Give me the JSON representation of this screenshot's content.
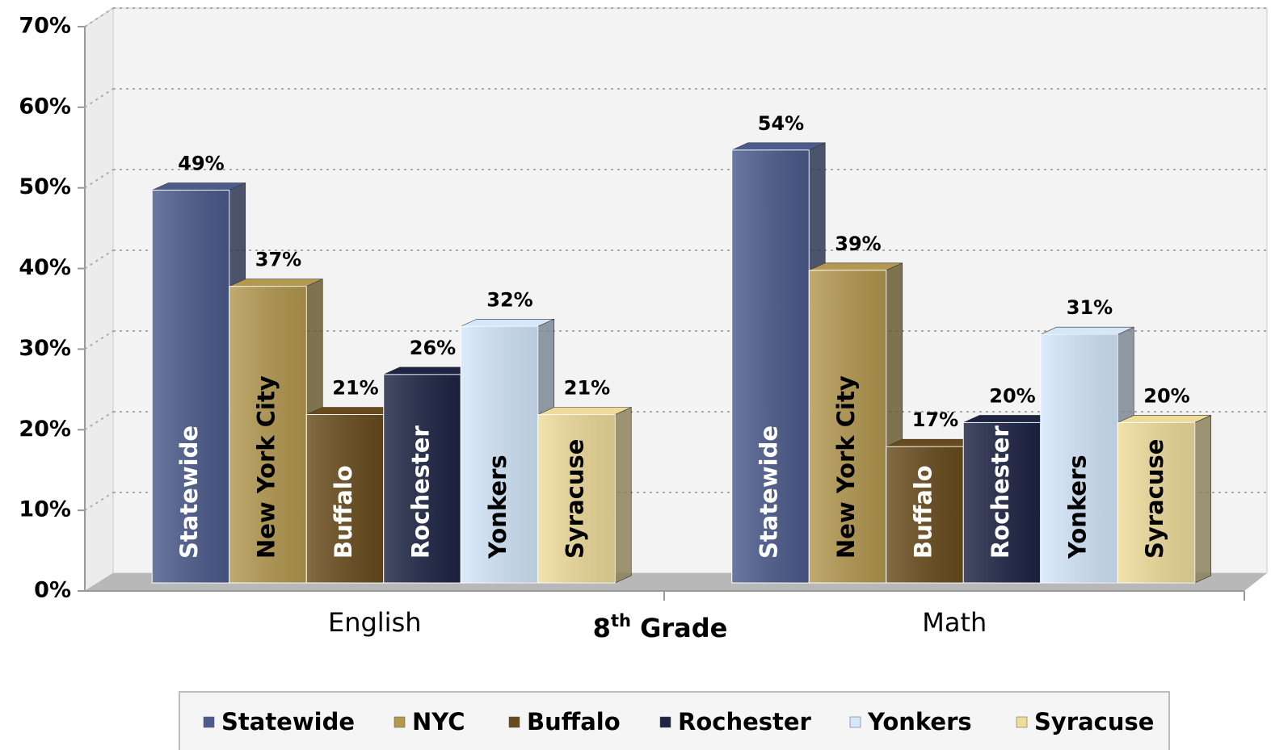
{
  "chart_data": {
    "type": "bar3d",
    "categories": [
      "English",
      "Math"
    ],
    "xlabel_parts": [
      "8",
      "th",
      " Grade"
    ],
    "series": [
      {
        "name": "Statewide",
        "bar_label": "Statewide",
        "color": "#4b5b8c",
        "label_color": "#ffffff",
        "values": [
          49,
          54
        ],
        "value_labels": [
          "49%",
          "54%"
        ]
      },
      {
        "name": "NYC",
        "bar_label": "New York City",
        "color": "#b3984f",
        "label_color": "#000000",
        "values": [
          37,
          39
        ],
        "value_labels": [
          "37%",
          "39%"
        ]
      },
      {
        "name": "Buffalo",
        "bar_label": "Buffalo",
        "color": "#684b1c",
        "label_color": "#ffffff",
        "values": [
          21,
          17
        ],
        "value_labels": [
          "21%",
          "17%"
        ]
      },
      {
        "name": "Rochester",
        "bar_label": "Rochester",
        "color": "#1d2444",
        "label_color": "#ffffff",
        "values": [
          26,
          20
        ],
        "value_labels": [
          "26%",
          "20%"
        ]
      },
      {
        "name": "Yonkers",
        "bar_label": "Yonkers",
        "color": "#d4e7fb",
        "label_color": "#000000",
        "values": [
          32,
          31
        ],
        "value_labels": [
          "32%",
          "31%"
        ]
      },
      {
        "name": "Syracuse",
        "bar_label": "Syracuse",
        "color": "#efdc9b",
        "label_color": "#000000",
        "values": [
          21,
          20
        ],
        "value_labels": [
          "21%",
          "20%"
        ]
      }
    ],
    "ylim": [
      0,
      70
    ],
    "yticks": [
      {
        "value": 0,
        "label": "0%"
      },
      {
        "value": 10,
        "label": "10%"
      },
      {
        "value": 20,
        "label": "20%"
      },
      {
        "value": 30,
        "label": "30%"
      },
      {
        "value": 40,
        "label": "40%"
      },
      {
        "value": 50,
        "label": "50%"
      },
      {
        "value": 60,
        "label": "60%"
      },
      {
        "value": 70,
        "label": "70%"
      }
    ],
    "grid": true,
    "legend": "bottom"
  }
}
